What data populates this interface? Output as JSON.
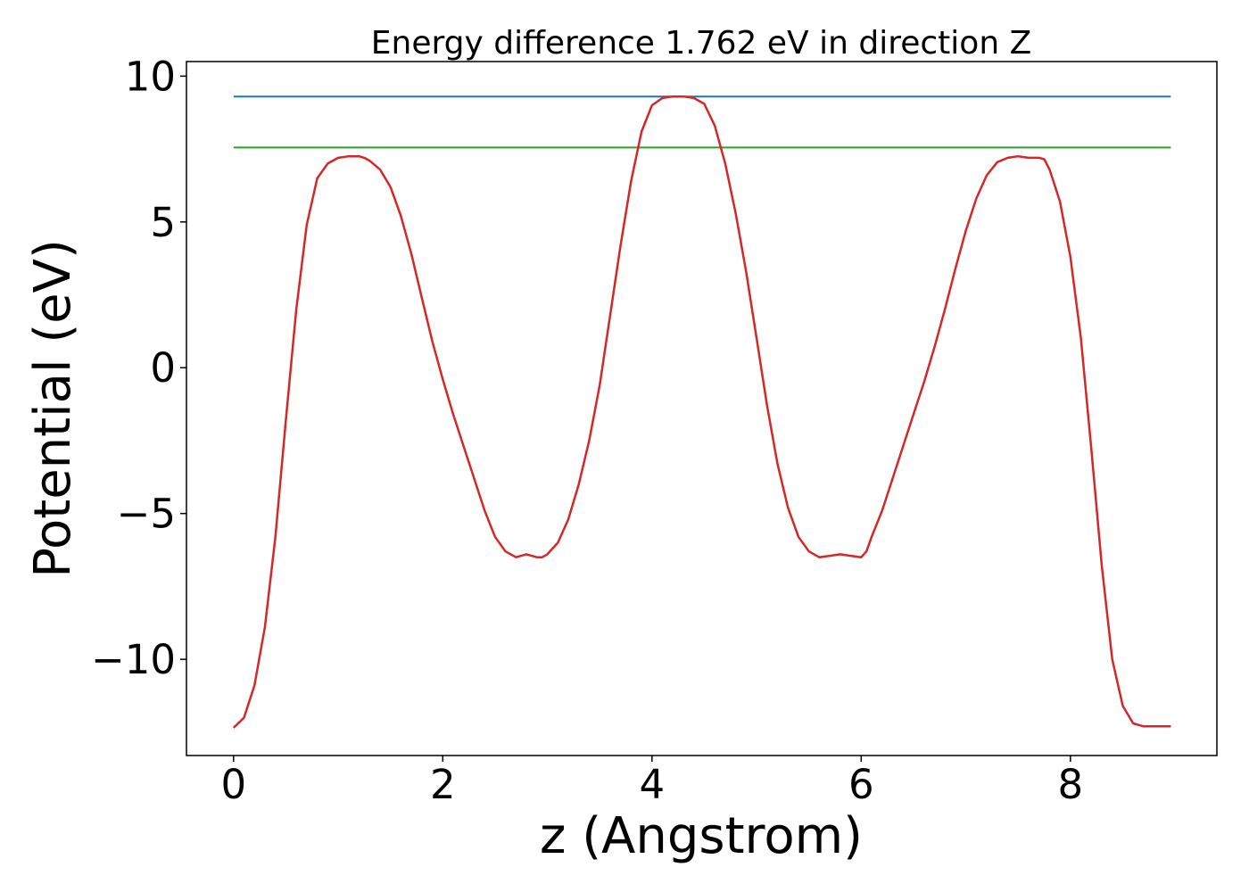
{
  "chart_data": {
    "type": "line",
    "title": "Energy difference 1.762 eV in direction Z",
    "xlabel": "z (Angstrom)",
    "ylabel": "Potential (eV)",
    "xlim": [
      -0.45,
      9.4
    ],
    "ylim": [
      -13.3,
      10.5
    ],
    "xticks": [
      0,
      2,
      4,
      6,
      8
    ],
    "xtick_labels": [
      "0",
      "2",
      "4",
      "6",
      "8"
    ],
    "yticks": [
      10,
      5,
      0,
      -5,
      -10
    ],
    "ytick_labels": [
      "10",
      "5",
      "0",
      "−5",
      "−10"
    ],
    "grid": false,
    "series": [
      {
        "color": "#1f77b4",
        "x": [
          0,
          8.96
        ],
        "y": [
          9.3,
          9.3
        ]
      },
      {
        "color": "#2ca02c",
        "x": [
          0,
          8.96
        ],
        "y": [
          7.55,
          7.55
        ]
      },
      {
        "color": "#d62728",
        "x": [
          0,
          0.1,
          0.2,
          0.3,
          0.4,
          0.5,
          0.6,
          0.7,
          0.8,
          0.9,
          1.0,
          1.1,
          1.2,
          1.25,
          1.3,
          1.4,
          1.5,
          1.6,
          1.7,
          1.8,
          1.9,
          2.0,
          2.1,
          2.2,
          2.3,
          2.4,
          2.5,
          2.6,
          2.7,
          2.8,
          2.9,
          2.95,
          3.0,
          3.1,
          3.2,
          3.3,
          3.4,
          3.5,
          3.6,
          3.7,
          3.8,
          3.9,
          4.0,
          4.1,
          4.2,
          4.3,
          4.4,
          4.5,
          4.6,
          4.7,
          4.8,
          4.9,
          5.0,
          5.1,
          5.2,
          5.3,
          5.4,
          5.5,
          5.6,
          5.7,
          5.8,
          5.9,
          6.0,
          6.05,
          6.1,
          6.2,
          6.3,
          6.4,
          6.5,
          6.6,
          6.7,
          6.8,
          6.9,
          7.0,
          7.1,
          7.2,
          7.3,
          7.4,
          7.5,
          7.6,
          7.7,
          7.75,
          7.8,
          7.9,
          8.0,
          8.1,
          8.2,
          8.3,
          8.4,
          8.5,
          8.6,
          8.7,
          8.8,
          8.9,
          8.96
        ],
        "y": [
          -12.35,
          -12.0,
          -10.9,
          -8.9,
          -5.8,
          -1.8,
          2.0,
          4.9,
          6.5,
          7.0,
          7.2,
          7.25,
          7.25,
          7.2,
          7.1,
          6.8,
          6.2,
          5.2,
          3.9,
          2.4,
          0.9,
          -0.4,
          -1.6,
          -2.7,
          -3.8,
          -4.9,
          -5.8,
          -6.3,
          -6.5,
          -6.4,
          -6.5,
          -6.5,
          -6.4,
          -6.0,
          -5.2,
          -4.0,
          -2.5,
          -0.6,
          1.8,
          4.2,
          6.4,
          8.1,
          9.0,
          9.25,
          9.3,
          9.3,
          9.25,
          9.05,
          8.3,
          7.0,
          5.3,
          3.3,
          1.0,
          -1.3,
          -3.3,
          -4.8,
          -5.8,
          -6.3,
          -6.5,
          -6.45,
          -6.4,
          -6.45,
          -6.5,
          -6.3,
          -5.8,
          -4.9,
          -3.8,
          -2.7,
          -1.6,
          -0.5,
          0.7,
          2.0,
          3.4,
          4.7,
          5.8,
          6.6,
          7.05,
          7.2,
          7.25,
          7.2,
          7.2,
          7.15,
          6.8,
          5.7,
          3.8,
          1.0,
          -2.8,
          -6.8,
          -10.0,
          -11.6,
          -12.2,
          -12.3,
          -12.3,
          -12.3,
          -12.3
        ]
      }
    ]
  }
}
